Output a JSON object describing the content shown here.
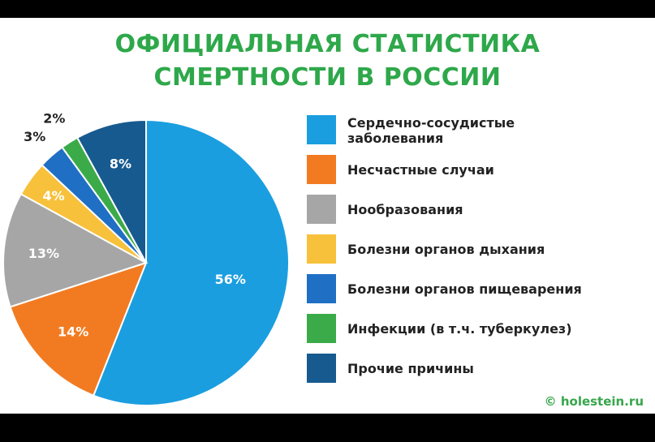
{
  "colors": {
    "title": "#2ea84a",
    "background": "#ffffff",
    "source": "#37a64b"
  },
  "chart_data": {
    "type": "pie",
    "title_lines": [
      "ОФИЦИАЛЬНАЯ СТАТИСТИКА",
      "СМЕРТНОСТИ В РОССИИ"
    ],
    "slices": [
      {
        "label": "Сердечно-сосудистые заболевания",
        "label_lines": [
          "Сердечно-сосудистые",
          "заболевания"
        ],
        "value": 56,
        "display": "56%",
        "color": "#1a9ee0"
      },
      {
        "label": "Несчастные случаи",
        "label_lines": [
          "Несчастные случаи"
        ],
        "value": 14,
        "display": "14%",
        "color": "#f27b22"
      },
      {
        "label": "Нообразования",
        "label_lines": [
          "Нообразования"
        ],
        "value": 13,
        "display": "13%",
        "color": "#a6a6a6"
      },
      {
        "label": "Болезни органов дыхания",
        "label_lines": [
          "Болезни органов дыхания"
        ],
        "value": 4,
        "display": "4%",
        "color": "#f7c13c"
      },
      {
        "label": "Болезни органов пищеварения",
        "label_lines": [
          "Болезни органов пищеварения"
        ],
        "value": 3,
        "display": "3%",
        "color": "#1f6fc4"
      },
      {
        "label": "Инфекции (в т.ч. туберкулез)",
        "label_lines": [
          "Инфекции (в т.ч. туберкулез)"
        ],
        "value": 2,
        "display": "2%",
        "color": "#3bab4a"
      },
      {
        "label": "Прочие причины",
        "label_lines": [
          "Прочие причины"
        ],
        "value": 8,
        "display": "8%",
        "color": "#175a8f"
      }
    ],
    "legend_position": "right"
  },
  "source": "© holestein.ru"
}
